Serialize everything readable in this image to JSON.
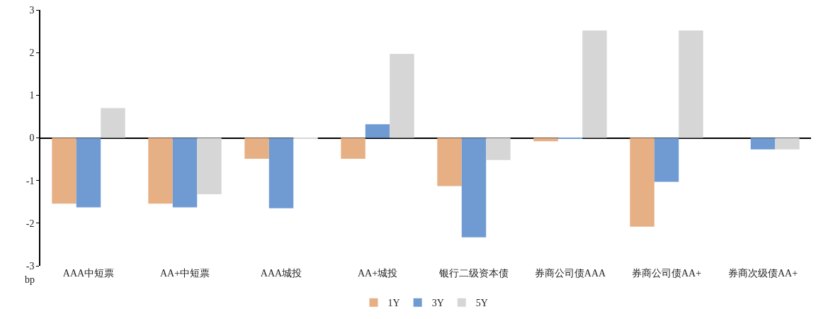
{
  "chart_data": {
    "type": "bar",
    "ylabel": "bp",
    "categories": [
      "AAA中短票",
      "AA+中短票",
      "AAA城投",
      "AA+城投",
      "银行二级资本债",
      "券商公司债AAA",
      "券商公司债AA+",
      "券商次级债AA+"
    ],
    "series": [
      {
        "name": "1Y",
        "color": "#e6af84",
        "values": [
          -1.54,
          -1.54,
          -0.49,
          -0.49,
          -1.13,
          -0.08,
          -2.08,
          0
        ]
      },
      {
        "name": "3Y",
        "color": "#6f9bd2",
        "values": [
          -1.63,
          -1.63,
          -1.65,
          0.32,
          -2.33,
          -0.02,
          -1.03,
          -0.27
        ]
      },
      {
        "name": "5Y",
        "color": "#d6d6d6",
        "values": [
          0.7,
          -1.32,
          -0.02,
          1.97,
          -0.52,
          2.52,
          2.52,
          -0.27
        ]
      }
    ],
    "ylim": [
      -3,
      3
    ],
    "yticks": [
      -3,
      -2,
      -1,
      0,
      1,
      2,
      3
    ],
    "legend": "bottom"
  }
}
